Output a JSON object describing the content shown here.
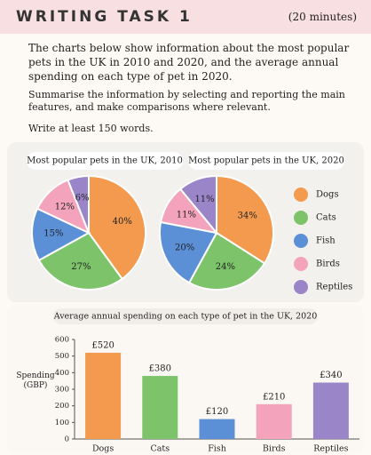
{
  "header": {
    "title": "WRITING TASK 1",
    "time": "(20 minutes)"
  },
  "paragraphs": [
    "The charts below show information about the most popular pets in the UK in 2010 and 2020, and the average annual spending on each type of pet in 2020.",
    "Summarise the information by selecting and reporting the main features, and make comparisons where relevant.",
    "Write at least 150 words."
  ],
  "chart_data": [
    {
      "type": "pie",
      "title": "Most popular pets in the UK, 2010",
      "categories": [
        "Dogs",
        "Cats",
        "Fish",
        "Birds",
        "Reptiles"
      ],
      "values": [
        40,
        27,
        15,
        12,
        6
      ],
      "value_labels": [
        "40%",
        "27%",
        "15%",
        "12%",
        "6%"
      ],
      "colors": [
        "#f39a4f",
        "#7cc36a",
        "#5b8fd6",
        "#f4a3bd",
        "#9b85c9"
      ]
    },
    {
      "type": "pie",
      "title": "Most popular pets in the UK, 2020",
      "categories": [
        "Dogs",
        "Cats",
        "Fish",
        "Birds",
        "Reptiles"
      ],
      "values": [
        34,
        24,
        20,
        11,
        11
      ],
      "value_labels": [
        "34%",
        "24%",
        "20%",
        "11%",
        "11%"
      ],
      "colors": [
        "#f39a4f",
        "#7cc36a",
        "#5b8fd6",
        "#f4a3bd",
        "#9b85c9"
      ]
    },
    {
      "type": "bar",
      "title": "Average annual spending on each type of pet in the UK, 2020",
      "y_label": "Spending (GBP)",
      "categories": [
        "Dogs",
        "Cats",
        "Fish",
        "Birds",
        "Reptiles"
      ],
      "values": [
        520,
        380,
        120,
        210,
        340
      ],
      "value_labels": [
        "£520",
        "£380",
        "£120",
        "£210",
        "£340"
      ],
      "colors": [
        "#f39a4f",
        "#7cc36a",
        "#5b8fd6",
        "#f4a3bd",
        "#9b85c9"
      ],
      "ylim": [
        0,
        600
      ],
      "yticks": [
        0,
        100,
        200,
        300,
        400,
        500,
        600
      ]
    }
  ]
}
